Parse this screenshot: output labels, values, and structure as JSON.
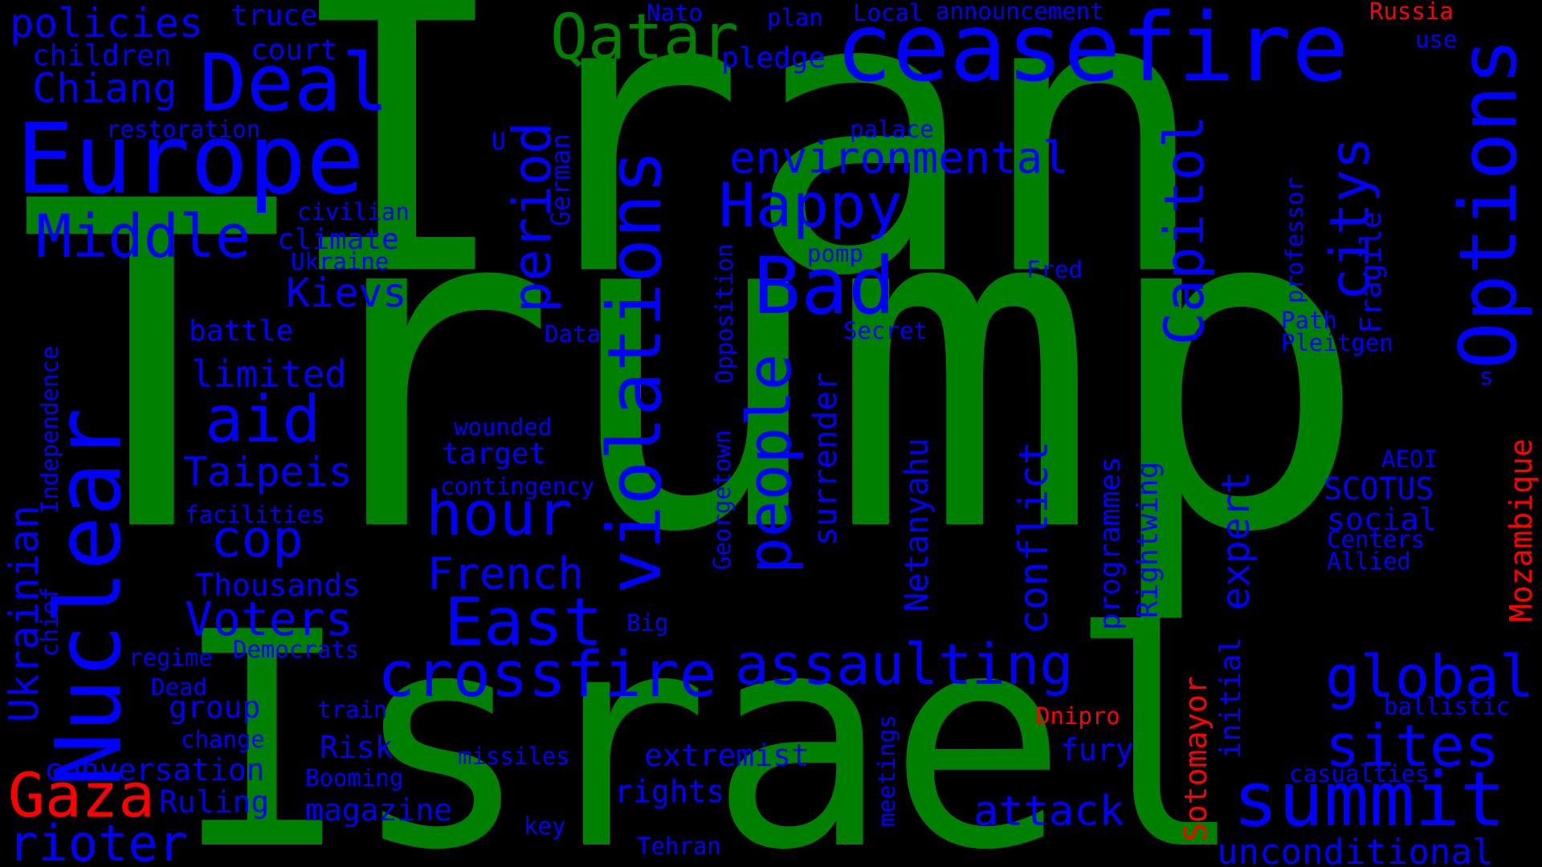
{
  "colors": {
    "green": "#008000",
    "blue": "#0000ff",
    "red": "#ff0000",
    "background": "#000000"
  },
  "words": [
    {
      "text": "Iran",
      "color": "green"
    },
    {
      "text": "Trump",
      "color": "green"
    },
    {
      "text": "Israel",
      "color": "green"
    },
    {
      "text": "ceasefire",
      "color": "blue"
    },
    {
      "text": "Qatar",
      "color": "green"
    },
    {
      "text": "Europe",
      "color": "blue"
    },
    {
      "text": "Deal",
      "color": "blue"
    },
    {
      "text": "Nuclear",
      "color": "blue"
    },
    {
      "text": "Middle",
      "color": "blue"
    },
    {
      "text": "Options",
      "color": "blue"
    },
    {
      "text": "violations",
      "color": "blue"
    },
    {
      "text": "period",
      "color": "blue"
    },
    {
      "text": "Capitol",
      "color": "blue"
    },
    {
      "text": "citys",
      "color": "blue"
    },
    {
      "text": "Happy",
      "color": "blue"
    },
    {
      "text": "Bad",
      "color": "blue"
    },
    {
      "text": "environmental",
      "color": "blue"
    },
    {
      "text": "people",
      "color": "blue"
    },
    {
      "text": "hour",
      "color": "blue"
    },
    {
      "text": "East",
      "color": "blue"
    },
    {
      "text": "crossfire",
      "color": "blue"
    },
    {
      "text": "assaulting",
      "color": "blue"
    },
    {
      "text": "summit",
      "color": "blue"
    },
    {
      "text": "global",
      "color": "blue"
    },
    {
      "text": "sites",
      "color": "blue"
    },
    {
      "text": "Gaza",
      "color": "red"
    },
    {
      "text": "rioter",
      "color": "blue"
    },
    {
      "text": "unconditional",
      "color": "blue"
    },
    {
      "text": "attack",
      "color": "blue"
    },
    {
      "text": "aid",
      "color": "blue"
    },
    {
      "text": "cop",
      "color": "blue"
    },
    {
      "text": "Voters",
      "color": "blue"
    },
    {
      "text": "Kievs",
      "color": "blue"
    },
    {
      "text": "Chiang",
      "color": "blue"
    },
    {
      "text": "policies",
      "color": "blue"
    },
    {
      "text": "truce",
      "color": "blue"
    },
    {
      "text": "children",
      "color": "blue"
    },
    {
      "text": "court",
      "color": "blue"
    },
    {
      "text": "restoration",
      "color": "blue"
    },
    {
      "text": "civilian",
      "color": "blue"
    },
    {
      "text": "climate",
      "color": "blue"
    },
    {
      "text": "Ukraine",
      "color": "blue"
    },
    {
      "text": "battle",
      "color": "blue"
    },
    {
      "text": "limited",
      "color": "blue"
    },
    {
      "text": "Taipeis",
      "color": "blue"
    },
    {
      "text": "facilities",
      "color": "blue"
    },
    {
      "text": "Thousands",
      "color": "blue"
    },
    {
      "text": "regime",
      "color": "blue"
    },
    {
      "text": "Democrats",
      "color": "blue"
    },
    {
      "text": "Dead",
      "color": "blue"
    },
    {
      "text": "group",
      "color": "blue"
    },
    {
      "text": "change",
      "color": "blue"
    },
    {
      "text": "conversation",
      "color": "blue"
    },
    {
      "text": "Ruling",
      "color": "blue"
    },
    {
      "text": "train",
      "color": "blue"
    },
    {
      "text": "Risk",
      "color": "blue"
    },
    {
      "text": "Booming",
      "color": "blue"
    },
    {
      "text": "magazine",
      "color": "blue"
    },
    {
      "text": "missiles",
      "color": "blue"
    },
    {
      "text": "key",
      "color": "blue"
    },
    {
      "text": "Tehran",
      "color": "blue"
    },
    {
      "text": "rights",
      "color": "blue"
    },
    {
      "text": "extremist",
      "color": "blue"
    },
    {
      "text": "fury",
      "color": "blue"
    },
    {
      "text": "Big",
      "color": "blue"
    },
    {
      "text": "French",
      "color": "blue"
    },
    {
      "text": "wounded",
      "color": "blue"
    },
    {
      "text": "target",
      "color": "blue"
    },
    {
      "text": "contingency",
      "color": "blue"
    },
    {
      "text": "Data",
      "color": "blue"
    },
    {
      "text": "Nato",
      "color": "blue"
    },
    {
      "text": "plan",
      "color": "blue"
    },
    {
      "text": "Local",
      "color": "blue"
    },
    {
      "text": "announcement",
      "color": "blue"
    },
    {
      "text": "pledge",
      "color": "blue"
    },
    {
      "text": "palace",
      "color": "blue"
    },
    {
      "text": "pomp",
      "color": "blue"
    },
    {
      "text": "Secret",
      "color": "blue"
    },
    {
      "text": "Fred",
      "color": "blue"
    },
    {
      "text": "Path",
      "color": "blue"
    },
    {
      "text": "Pleitgen",
      "color": "blue"
    },
    {
      "text": "Russia",
      "color": "red"
    },
    {
      "text": "use",
      "color": "blue"
    },
    {
      "text": "AEOI",
      "color": "blue"
    },
    {
      "text": "SCOTUS",
      "color": "blue"
    },
    {
      "text": "social",
      "color": "blue"
    },
    {
      "text": "Centers",
      "color": "blue"
    },
    {
      "text": "Allied",
      "color": "blue"
    },
    {
      "text": "ballistic",
      "color": "blue"
    },
    {
      "text": "casualties",
      "color": "blue"
    },
    {
      "text": "Dnipro",
      "color": "red"
    },
    {
      "text": "U",
      "color": "blue"
    },
    {
      "text": "s",
      "color": "blue"
    },
    {
      "text": "German",
      "color": "blue"
    },
    {
      "text": "Opposition",
      "color": "blue"
    },
    {
      "text": "Georgetown",
      "color": "blue"
    },
    {
      "text": "surrender",
      "color": "blue"
    },
    {
      "text": "Netanyahu",
      "color": "blue"
    },
    {
      "text": "conflict",
      "color": "blue"
    },
    {
      "text": "programmes",
      "color": "blue"
    },
    {
      "text": "Rightwing",
      "color": "blue"
    },
    {
      "text": "expert",
      "color": "blue"
    },
    {
      "text": "initial",
      "color": "blue"
    },
    {
      "text": "Sotomayor",
      "color": "red"
    },
    {
      "text": "professor",
      "color": "blue"
    },
    {
      "text": "Fragile",
      "color": "blue"
    },
    {
      "text": "Mozambique",
      "color": "red"
    },
    {
      "text": "Ukrainian",
      "color": "blue"
    },
    {
      "text": "Independence",
      "color": "blue"
    },
    {
      "text": "chief",
      "color": "blue"
    },
    {
      "text": "meetings",
      "color": "blue"
    }
  ]
}
